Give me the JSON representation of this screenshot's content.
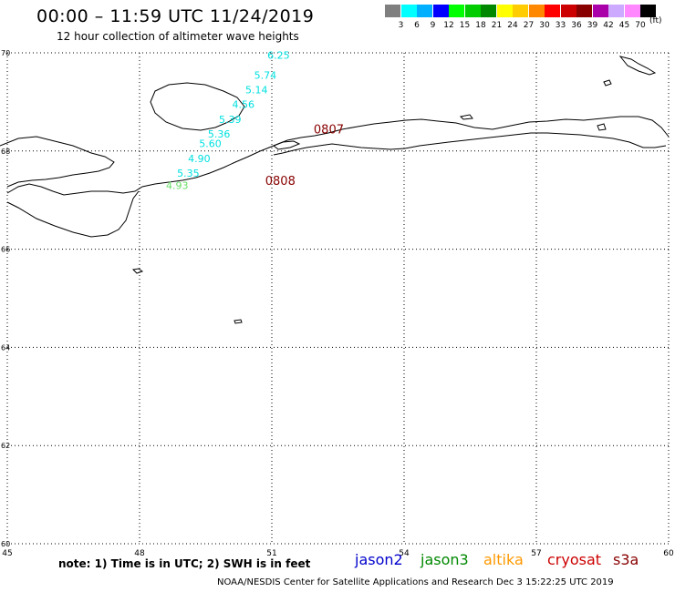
{
  "title": "00:00 – 11:59 UTC 11/24/2019",
  "subtitle": "12 hour collection of altimeter wave heights",
  "legend": {
    "unit": "(ft)",
    "colors": [
      "#7f7f7f",
      "#00ffff",
      "#00b0ff",
      "#0000ff",
      "#00ff00",
      "#00cc00",
      "#008800",
      "#ffff00",
      "#ffcc00",
      "#ff8800",
      "#ff0000",
      "#cc0000",
      "#880000",
      "#aa00aa",
      "#ccaaff",
      "#ff88ff",
      "#000000"
    ],
    "labels": [
      "3",
      "6",
      "9",
      "12",
      "15",
      "18",
      "21",
      "24",
      "27",
      "30",
      "33",
      "36",
      "39",
      "42",
      "45",
      "70"
    ]
  },
  "map": {
    "lon_range": [
      45,
      60
    ],
    "lat_range": [
      60,
      70
    ],
    "lon_ticks": [
      "45",
      "48",
      "51",
      "54",
      "57",
      "60"
    ],
    "lat_ticks": [
      "70",
      "68",
      "66",
      "64",
      "62",
      "60"
    ],
    "grid": "dotted",
    "track_points": [
      {
        "label": "6.25",
        "lon": 50.9,
        "lat": 69.95,
        "color": "#00e0e0"
      },
      {
        "label": "5.74",
        "lon": 50.6,
        "lat": 69.55,
        "color": "#00e0e0"
      },
      {
        "label": "5.14",
        "lon": 50.4,
        "lat": 69.25,
        "color": "#00e0e0"
      },
      {
        "label": "4.56",
        "lon": 50.1,
        "lat": 68.95,
        "color": "#00e0e0"
      },
      {
        "label": "5.39",
        "lon": 49.8,
        "lat": 68.65,
        "color": "#00e0e0"
      },
      {
        "label": "5.36",
        "lon": 49.55,
        "lat": 68.35,
        "color": "#00e0e0"
      },
      {
        "label": "5.60",
        "lon": 49.35,
        "lat": 68.15,
        "color": "#00e0e0"
      },
      {
        "label": "4.90",
        "lon": 49.1,
        "lat": 67.85,
        "color": "#00e0e0"
      },
      {
        "label": "5.35",
        "lon": 48.85,
        "lat": 67.55,
        "color": "#00e0e0"
      },
      {
        "label": "4.93",
        "lon": 48.6,
        "lat": 67.3,
        "color": "#66dd66"
      }
    ],
    "time_labels": [
      {
        "label": "0807",
        "lon": 51.95,
        "lat": 68.45,
        "color": "#880000"
      },
      {
        "label": "0808",
        "lon": 50.85,
        "lat": 67.4,
        "color": "#880000"
      }
    ]
  },
  "footer": {
    "note": "note: 1) Time is in UTC; 2) SWH is in feet",
    "satellites": [
      {
        "name": "jason2",
        "color": "#0000cc"
      },
      {
        "name": "jason3",
        "color": "#008800"
      },
      {
        "name": "altika",
        "color": "#ff9900"
      },
      {
        "name": "cryosat",
        "color": "#cc0000"
      },
      {
        "name": "s3a",
        "color": "#880000"
      }
    ],
    "credit": "NOAA/NESDIS Center for Satellite Applications and Research     Dec  3 15:22:25 UTC 2019"
  }
}
